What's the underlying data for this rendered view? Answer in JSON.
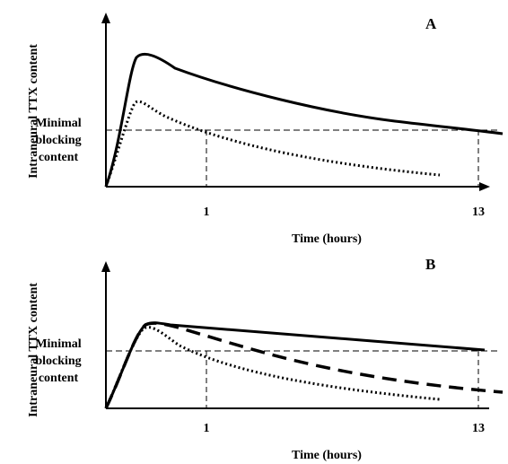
{
  "figure": {
    "panels": [
      {
        "id": "A",
        "label": "A",
        "ylabel": "Intraneural TTX content",
        "xlabel": "Time (hours)",
        "threshold_label_lines": [
          "Minimal",
          "blocking",
          "content"
        ],
        "x_ticks": [
          "1",
          "13"
        ]
      },
      {
        "id": "B",
        "label": "B",
        "ylabel": "Intraneural TTX content",
        "xlabel": "Time (hours)",
        "threshold_label_lines": [
          "Minimal",
          "blocking",
          "content"
        ],
        "x_ticks": [
          "1",
          "13"
        ]
      }
    ],
    "colors": {
      "ink": "#000000",
      "background": "#ffffff"
    }
  }
}
